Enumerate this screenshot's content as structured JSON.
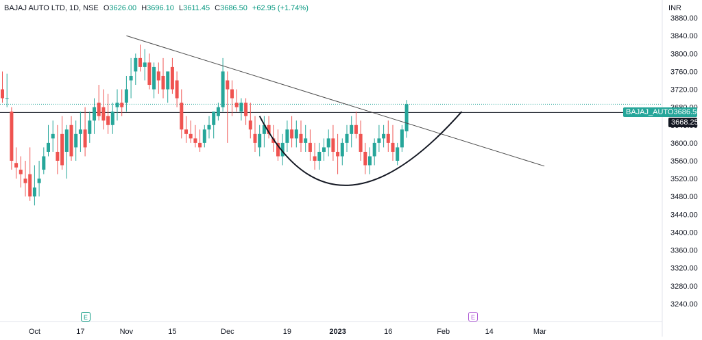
{
  "header": {
    "symbol": "BAJAJ AUTO LTD, 1D, NSE",
    "o_label": "O",
    "o_value": "3626.00",
    "h_label": "H",
    "h_value": "3696.10",
    "l_label": "L",
    "l_value": "3611.45",
    "c_label": "C",
    "c_value": "3686.50",
    "change": "+62.95 (+1.74%)"
  },
  "currency": "INR",
  "price_tag": {
    "symbol": "BAJAJ_AUTO",
    "value": "3686.50"
  },
  "ref_tag": {
    "value": "3668.25"
  },
  "events": [
    {
      "icon": "earnings-icon",
      "text": "E"
    },
    {
      "icon": "earnings-icon",
      "text": "E"
    }
  ],
  "colors": {
    "up": "#26a69a",
    "down": "#ef5350",
    "trendline": "#4a4a4a",
    "cup": "#131722"
  },
  "chart_data": {
    "type": "candlestick",
    "symbol": "BAJAJ AUTO LTD",
    "interval": "1D",
    "exchange": "NSE",
    "y_ticks": [
      3240,
      3280,
      3320,
      3360,
      3400,
      3440,
      3480,
      3520,
      3560,
      3600,
      3640,
      3680,
      3720,
      3760,
      3800,
      3840,
      3880
    ],
    "y_tick_labels": [
      "3240.00",
      "3280.00",
      "3320.00",
      "3360.00",
      "3400.00",
      "3440.00",
      "3480.00",
      "3520.00",
      "3560.00",
      "3600.00",
      "3640.00",
      "3680.00",
      "3720.00",
      "3760.00",
      "3800.00",
      "3840.00",
      "3880.00"
    ],
    "ylim": [
      3200,
      3920
    ],
    "x_ticks": [
      {
        "label": "Oct",
        "bar": 7,
        "bold": false
      },
      {
        "label": "17",
        "bar": 17,
        "bold": false
      },
      {
        "label": "Nov",
        "bar": 27,
        "bold": false
      },
      {
        "label": "15",
        "bar": 37,
        "bold": false
      },
      {
        "label": "Dec",
        "bar": 49,
        "bold": false
      },
      {
        "label": "19",
        "bar": 62,
        "bold": false
      },
      {
        "label": "2023",
        "bar": 73,
        "bold": true
      },
      {
        "label": "16",
        "bar": 84,
        "bold": false
      },
      {
        "label": "Feb",
        "bar": 96,
        "bold": false
      },
      {
        "label": "14",
        "bar": 106,
        "bold": false
      },
      {
        "label": "Mar",
        "bar": 117,
        "bold": false
      }
    ],
    "candles": [
      [
        3720,
        3760,
        3690,
        3700
      ],
      [
        3700,
        3755,
        3680,
        3700
      ],
      [
        3670,
        3680,
        3540,
        3560
      ],
      [
        3555,
        3590,
        3520,
        3545
      ],
      [
        3540,
        3570,
        3500,
        3530
      ],
      [
        3520,
        3560,
        3480,
        3510
      ],
      [
        3530,
        3590,
        3470,
        3480
      ],
      [
        3480,
        3550,
        3460,
        3500
      ],
      [
        3510,
        3560,
        3480,
        3520
      ],
      [
        3540,
        3590,
        3530,
        3570
      ],
      [
        3580,
        3640,
        3570,
        3600
      ],
      [
        3610,
        3650,
        3580,
        3620
      ],
      [
        3580,
        3640,
        3530,
        3560
      ],
      [
        3620,
        3660,
        3540,
        3550
      ],
      [
        3580,
        3640,
        3520,
        3630
      ],
      [
        3640,
        3660,
        3560,
        3570
      ],
      [
        3590,
        3650,
        3560,
        3620
      ],
      [
        3620,
        3670,
        3580,
        3630
      ],
      [
        3630,
        3680,
        3570,
        3590
      ],
      [
        3620,
        3670,
        3600,
        3650
      ],
      [
        3650,
        3700,
        3620,
        3680
      ],
      [
        3690,
        3730,
        3650,
        3660
      ],
      [
        3680,
        3720,
        3630,
        3650
      ],
      [
        3660,
        3710,
        3620,
        3640
      ],
      [
        3640,
        3690,
        3620,
        3670
      ],
      [
        3680,
        3720,
        3650,
        3690
      ],
      [
        3690,
        3720,
        3660,
        3680
      ],
      [
        3690,
        3750,
        3670,
        3720
      ],
      [
        3740,
        3790,
        3700,
        3750
      ],
      [
        3760,
        3800,
        3730,
        3790
      ],
      [
        3790,
        3820,
        3760,
        3770
      ],
      [
        3770,
        3810,
        3740,
        3780
      ],
      [
        3780,
        3800,
        3720,
        3730
      ],
      [
        3720,
        3780,
        3700,
        3770
      ],
      [
        3760,
        3780,
        3710,
        3740
      ],
      [
        3750,
        3790,
        3700,
        3720
      ],
      [
        3720,
        3760,
        3690,
        3760
      ],
      [
        3770,
        3790,
        3710,
        3720
      ],
      [
        3740,
        3760,
        3680,
        3700
      ],
      [
        3690,
        3720,
        3610,
        3630
      ],
      [
        3630,
        3660,
        3600,
        3620
      ],
      [
        3620,
        3650,
        3600,
        3610
      ],
      [
        3610,
        3640,
        3590,
        3600
      ],
      [
        3600,
        3630,
        3580,
        3590
      ],
      [
        3600,
        3640,
        3590,
        3630
      ],
      [
        3630,
        3660,
        3610,
        3640
      ],
      [
        3640,
        3670,
        3610,
        3670
      ],
      [
        3660,
        3690,
        3650,
        3680
      ],
      [
        3680,
        3790,
        3670,
        3760
      ],
      [
        3740,
        3760,
        3600,
        3720
      ],
      [
        3720,
        3740,
        3660,
        3700
      ],
      [
        3690,
        3720,
        3670,
        3680
      ],
      [
        3670,
        3700,
        3650,
        3690
      ],
      [
        3690,
        3700,
        3640,
        3660
      ],
      [
        3650,
        3690,
        3610,
        3630
      ],
      [
        3620,
        3660,
        3580,
        3600
      ],
      [
        3590,
        3640,
        3570,
        3620
      ],
      [
        3620,
        3660,
        3590,
        3640
      ],
      [
        3640,
        3660,
        3610,
        3620
      ],
      [
        3610,
        3640,
        3580,
        3600
      ],
      [
        3600,
        3630,
        3560,
        3570
      ],
      [
        3570,
        3620,
        3550,
        3600
      ],
      [
        3600,
        3650,
        3580,
        3630
      ],
      [
        3630,
        3660,
        3590,
        3610
      ],
      [
        3610,
        3650,
        3590,
        3630
      ],
      [
        3620,
        3650,
        3580,
        3600
      ],
      [
        3600,
        3640,
        3580,
        3610
      ],
      [
        3600,
        3630,
        3560,
        3580
      ],
      [
        3570,
        3600,
        3540,
        3560
      ],
      [
        3560,
        3600,
        3540,
        3580
      ],
      [
        3580,
        3610,
        3560,
        3590
      ],
      [
        3590,
        3630,
        3570,
        3610
      ],
      [
        3610,
        3640,
        3560,
        3580
      ],
      [
        3580,
        3620,
        3530,
        3570
      ],
      [
        3570,
        3610,
        3550,
        3600
      ],
      [
        3600,
        3640,
        3580,
        3620
      ],
      [
        3620,
        3660,
        3590,
        3640
      ],
      [
        3640,
        3670,
        3610,
        3620
      ],
      [
        3620,
        3650,
        3560,
        3580
      ],
      [
        3580,
        3600,
        3530,
        3550
      ],
      [
        3550,
        3590,
        3530,
        3570
      ],
      [
        3570,
        3610,
        3550,
        3600
      ],
      [
        3600,
        3640,
        3580,
        3610
      ],
      [
        3610,
        3640,
        3590,
        3620
      ],
      [
        3620,
        3650,
        3580,
        3600
      ],
      [
        3600,
        3640,
        3560,
        3580
      ],
      [
        3560,
        3600,
        3550,
        3590
      ],
      [
        3590,
        3640,
        3580,
        3630
      ],
      [
        3626,
        3696.1,
        3611.45,
        3686.5
      ]
    ],
    "trendline": {
      "start": {
        "bar": 27,
        "price": 3840
      },
      "end": {
        "bar": 118,
        "price": 3548
      }
    },
    "ref_line": 3668.25,
    "last_price": 3686.5,
    "cup_arc": {
      "left": {
        "bar": 56,
        "price": 3660
      },
      "bottom": {
        "bar": 75,
        "price": 3505
      },
      "right": {
        "bar": 100,
        "price": 3670
      }
    }
  }
}
